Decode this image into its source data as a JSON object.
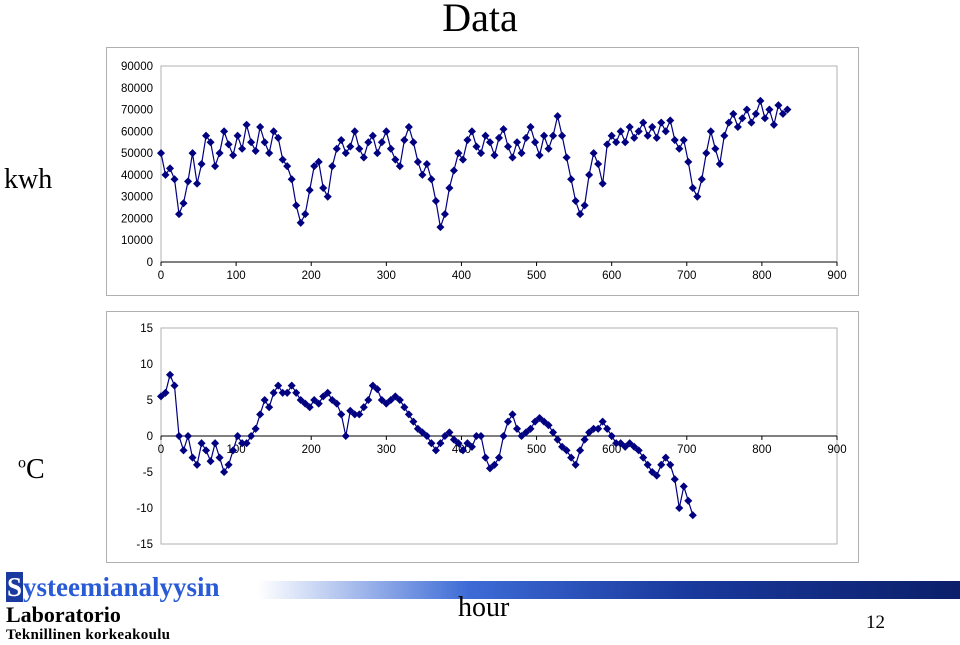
{
  "slide": {
    "title": "Data",
    "xaxis_title": "hour",
    "page_number": "12",
    "logo": {
      "first_letter": "S",
      "rest": "ysteemianalyysin",
      "line2": "Laboratorio",
      "line3": "Teknillinen korkeakoulu"
    }
  },
  "colors": {
    "series": "#000080",
    "grid": "#b0b0b0",
    "logo_blue": "#2a5bd7"
  },
  "chart_data": [
    {
      "type": "line",
      "ylabel": "kwh",
      "xlim": [
        0,
        900
      ],
      "ylim": [
        0,
        90000
      ],
      "xticks": [
        0,
        100,
        200,
        300,
        400,
        500,
        600,
        700,
        800,
        900
      ],
      "yticks": [
        0,
        10000,
        20000,
        30000,
        40000,
        50000,
        60000,
        70000,
        80000,
        90000
      ],
      "marker": "diamond",
      "points": [
        [
          0,
          50000
        ],
        [
          6,
          40000
        ],
        [
          12,
          43000
        ],
        [
          18,
          38000
        ],
        [
          24,
          22000
        ],
        [
          30,
          27000
        ],
        [
          36,
          37000
        ],
        [
          42,
          50000
        ],
        [
          48,
          36000
        ],
        [
          54,
          45000
        ],
        [
          60,
          58000
        ],
        [
          66,
          55000
        ],
        [
          72,
          44000
        ],
        [
          78,
          50000
        ],
        [
          84,
          60000
        ],
        [
          90,
          54000
        ],
        [
          96,
          49000
        ],
        [
          102,
          58000
        ],
        [
          108,
          52000
        ],
        [
          114,
          63000
        ],
        [
          120,
          55000
        ],
        [
          126,
          51000
        ],
        [
          132,
          62000
        ],
        [
          138,
          55000
        ],
        [
          144,
          50000
        ],
        [
          150,
          60000
        ],
        [
          156,
          57000
        ],
        [
          162,
          47000
        ],
        [
          168,
          44000
        ],
        [
          174,
          38000
        ],
        [
          180,
          26000
        ],
        [
          186,
          18000
        ],
        [
          192,
          22000
        ],
        [
          198,
          33000
        ],
        [
          204,
          44000
        ],
        [
          210,
          46000
        ],
        [
          216,
          34000
        ],
        [
          222,
          30000
        ],
        [
          228,
          44000
        ],
        [
          234,
          52000
        ],
        [
          240,
          56000
        ],
        [
          246,
          50000
        ],
        [
          252,
          53000
        ],
        [
          258,
          60000
        ],
        [
          264,
          52000
        ],
        [
          270,
          48000
        ],
        [
          276,
          55000
        ],
        [
          282,
          58000
        ],
        [
          288,
          50000
        ],
        [
          294,
          55000
        ],
        [
          300,
          60000
        ],
        [
          306,
          52000
        ],
        [
          312,
          47000
        ],
        [
          318,
          44000
        ],
        [
          324,
          56000
        ],
        [
          330,
          62000
        ],
        [
          336,
          55000
        ],
        [
          342,
          46000
        ],
        [
          348,
          40000
        ],
        [
          354,
          45000
        ],
        [
          360,
          38000
        ],
        [
          366,
          28000
        ],
        [
          372,
          16000
        ],
        [
          378,
          22000
        ],
        [
          384,
          34000
        ],
        [
          390,
          42000
        ],
        [
          396,
          50000
        ],
        [
          402,
          47000
        ],
        [
          408,
          56000
        ],
        [
          414,
          60000
        ],
        [
          420,
          53000
        ],
        [
          426,
          50000
        ],
        [
          432,
          58000
        ],
        [
          438,
          55000
        ],
        [
          444,
          49000
        ],
        [
          450,
          57000
        ],
        [
          456,
          61000
        ],
        [
          462,
          53000
        ],
        [
          468,
          48000
        ],
        [
          474,
          55000
        ],
        [
          480,
          50000
        ],
        [
          486,
          57000
        ],
        [
          492,
          62000
        ],
        [
          498,
          55000
        ],
        [
          504,
          49000
        ],
        [
          510,
          58000
        ],
        [
          516,
          52000
        ],
        [
          522,
          58000
        ],
        [
          528,
          67000
        ],
        [
          534,
          58000
        ],
        [
          540,
          48000
        ],
        [
          546,
          38000
        ],
        [
          552,
          28000
        ],
        [
          558,
          22000
        ],
        [
          564,
          26000
        ],
        [
          570,
          40000
        ],
        [
          576,
          50000
        ],
        [
          582,
          45000
        ],
        [
          588,
          36000
        ],
        [
          594,
          54000
        ],
        [
          600,
          58000
        ],
        [
          606,
          55000
        ],
        [
          612,
          60000
        ],
        [
          618,
          55000
        ],
        [
          624,
          62000
        ],
        [
          630,
          57000
        ],
        [
          636,
          60000
        ],
        [
          642,
          64000
        ],
        [
          648,
          58000
        ],
        [
          654,
          62000
        ],
        [
          660,
          57000
        ],
        [
          666,
          64000
        ],
        [
          672,
          60000
        ],
        [
          678,
          65000
        ],
        [
          684,
          56000
        ],
        [
          690,
          52000
        ],
        [
          696,
          56000
        ],
        [
          702,
          46000
        ],
        [
          708,
          34000
        ],
        [
          714,
          30000
        ],
        [
          720,
          38000
        ],
        [
          726,
          50000
        ],
        [
          732,
          60000
        ],
        [
          738,
          52000
        ],
        [
          744,
          45000
        ],
        [
          750,
          58000
        ],
        [
          756,
          64000
        ],
        [
          762,
          68000
        ],
        [
          768,
          62000
        ],
        [
          774,
          66000
        ],
        [
          780,
          70000
        ],
        [
          786,
          64000
        ],
        [
          792,
          68000
        ],
        [
          798,
          74000
        ],
        [
          804,
          66000
        ],
        [
          810,
          70000
        ],
        [
          816,
          63000
        ],
        [
          822,
          72000
        ],
        [
          828,
          68000
        ],
        [
          834,
          70000
        ]
      ]
    },
    {
      "type": "line",
      "ylabel": "oC",
      "xlim": [
        0,
        900
      ],
      "ylim": [
        -15,
        15
      ],
      "xticks": [
        0,
        100,
        200,
        300,
        400,
        500,
        600,
        700,
        800,
        900
      ],
      "yticks": [
        -15,
        -10,
        -5,
        0,
        5,
        10,
        15
      ],
      "marker": "diamond",
      "points": [
        [
          0,
          5.5
        ],
        [
          6,
          6
        ],
        [
          12,
          8.5
        ],
        [
          18,
          7
        ],
        [
          24,
          0
        ],
        [
          30,
          -2
        ],
        [
          36,
          0
        ],
        [
          42,
          -3
        ],
        [
          48,
          -4
        ],
        [
          54,
          -1
        ],
        [
          60,
          -2
        ],
        [
          66,
          -3.5
        ],
        [
          72,
          -1
        ],
        [
          78,
          -3
        ],
        [
          84,
          -5
        ],
        [
          90,
          -4
        ],
        [
          96,
          -2
        ],
        [
          102,
          0
        ],
        [
          108,
          -1
        ],
        [
          114,
          -1
        ],
        [
          120,
          0
        ],
        [
          126,
          1
        ],
        [
          132,
          3
        ],
        [
          138,
          5
        ],
        [
          144,
          4
        ],
        [
          150,
          6
        ],
        [
          156,
          7
        ],
        [
          162,
          6
        ],
        [
          168,
          6
        ],
        [
          174,
          7
        ],
        [
          180,
          6
        ],
        [
          186,
          5
        ],
        [
          192,
          4.5
        ],
        [
          198,
          4
        ],
        [
          204,
          5
        ],
        [
          210,
          4.5
        ],
        [
          216,
          5.5
        ],
        [
          222,
          6
        ],
        [
          228,
          5
        ],
        [
          234,
          4.5
        ],
        [
          240,
          3
        ],
        [
          246,
          0
        ],
        [
          252,
          3.5
        ],
        [
          258,
          3
        ],
        [
          264,
          3
        ],
        [
          270,
          4
        ],
        [
          276,
          5
        ],
        [
          282,
          7
        ],
        [
          288,
          6.5
        ],
        [
          294,
          5
        ],
        [
          300,
          4.5
        ],
        [
          306,
          5
        ],
        [
          312,
          5.5
        ],
        [
          318,
          5
        ],
        [
          324,
          4
        ],
        [
          330,
          3
        ],
        [
          336,
          2
        ],
        [
          342,
          1
        ],
        [
          348,
          0.5
        ],
        [
          354,
          0
        ],
        [
          360,
          -1
        ],
        [
          366,
          -2
        ],
        [
          372,
          -1
        ],
        [
          378,
          0
        ],
        [
          384,
          0.5
        ],
        [
          390,
          -0.5
        ],
        [
          396,
          -1
        ],
        [
          402,
          -2
        ],
        [
          408,
          -1
        ],
        [
          414,
          -1.5
        ],
        [
          420,
          0
        ],
        [
          426,
          0
        ],
        [
          432,
          -3
        ],
        [
          438,
          -4.5
        ],
        [
          444,
          -4
        ],
        [
          450,
          -3
        ],
        [
          456,
          0
        ],
        [
          462,
          2
        ],
        [
          468,
          3
        ],
        [
          474,
          1
        ],
        [
          480,
          0
        ],
        [
          486,
          0.5
        ],
        [
          492,
          1
        ],
        [
          498,
          2
        ],
        [
          504,
          2.5
        ],
        [
          510,
          2
        ],
        [
          516,
          1.5
        ],
        [
          522,
          0.5
        ],
        [
          528,
          -0.5
        ],
        [
          534,
          -1.5
        ],
        [
          540,
          -2
        ],
        [
          546,
          -3
        ],
        [
          552,
          -4
        ],
        [
          558,
          -2
        ],
        [
          564,
          -0.5
        ],
        [
          570,
          0.5
        ],
        [
          576,
          1
        ],
        [
          582,
          1
        ],
        [
          588,
          2
        ],
        [
          594,
          1
        ],
        [
          600,
          0
        ],
        [
          606,
          -1
        ],
        [
          612,
          -1
        ],
        [
          618,
          -1.5
        ],
        [
          624,
          -1
        ],
        [
          630,
          -1.5
        ],
        [
          636,
          -2
        ],
        [
          642,
          -3
        ],
        [
          648,
          -4
        ],
        [
          654,
          -5
        ],
        [
          660,
          -5.5
        ],
        [
          666,
          -4
        ],
        [
          672,
          -3
        ],
        [
          678,
          -4
        ],
        [
          684,
          -6
        ],
        [
          690,
          -10
        ],
        [
          696,
          -7
        ],
        [
          702,
          -9
        ],
        [
          708,
          -11
        ]
      ]
    }
  ]
}
